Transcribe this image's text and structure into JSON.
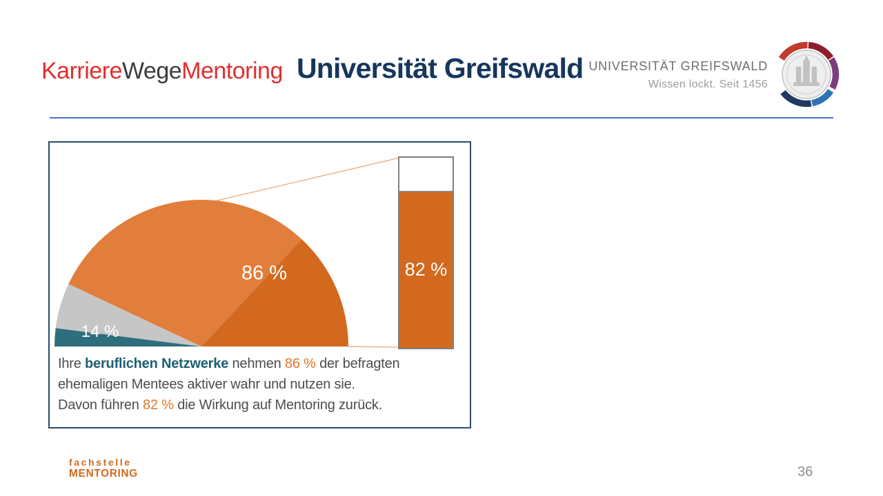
{
  "header": {
    "logo": {
      "part1": "Karriere",
      "part2": "Wege",
      "part3": "Mentoring"
    },
    "title": "Universität Greifswald",
    "university": {
      "name": "UNIVERSITÄT GREIFSWALD",
      "tagline": "Wissen lockt. Seit 1456"
    }
  },
  "chart_data": {
    "type": "half-pie-with-bar",
    "pie": {
      "slices": [
        {
          "label": "86 %",
          "value": 86,
          "meaning": "nehmen berufliche Netzwerke aktiver wahr"
        },
        {
          "label": "14 %",
          "value": 10,
          "meaning": "Rest (14 % gesamt, grau+petrol)"
        },
        {
          "label": "",
          "value": 4,
          "meaning": "Teil des 14-%-Rests (petrol)"
        }
      ],
      "shade_split_deg": 47
    },
    "bar": {
      "label": "82 %",
      "value": 82,
      "remainder": 18,
      "meaning": "führen die Wirkung auf Mentoring zurück"
    }
  },
  "caption": {
    "line1a": "Ihre ",
    "line1b": "beruflichen Netzwerke",
    "line1c": " nehmen ",
    "line1d": "86 %",
    "line1e": " der befragten",
    "line2": "ehemaligen Mentees aktiver wahr und nutzen sie.",
    "line3a": "Davon führen ",
    "line3b": "82 %",
    "line3c": " die Wirkung auf Mentoring zurück."
  },
  "footer": {
    "logo_line1": "fachstelle",
    "logo_line2": "MENTORING",
    "page_number": "36"
  },
  "colors": {
    "light_orange": "#E17E3C",
    "dark_orange": "#D2691E",
    "gray_slice": "#C6C6C6",
    "teal": "#2E6F7E",
    "connector": "#F0A875",
    "bar_fill": "#D2691E",
    "title_navy": "#17365D",
    "logo_red": "#E32D2E",
    "divider_blue": "#4472C4",
    "seal_red": "#C13B2E",
    "seal_dark_red": "#8F1E2D",
    "seal_purple": "#7B3E7D",
    "seal_light_blue": "#2E74B5",
    "seal_navy": "#203A5F"
  }
}
